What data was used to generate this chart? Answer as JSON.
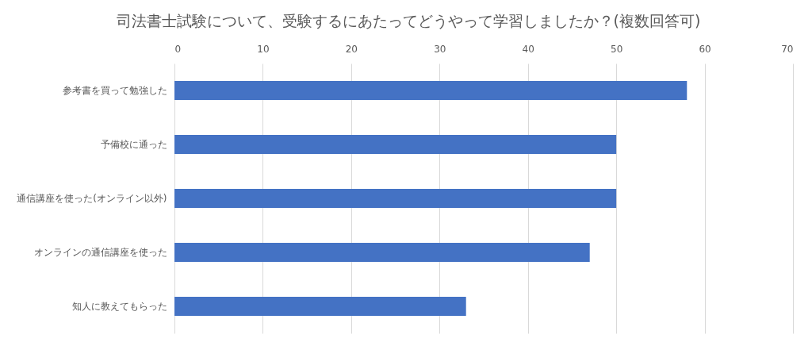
{
  "chart_data": {
    "type": "bar",
    "orientation": "horizontal",
    "title": "司法書士試験について、受験するにあたってどうやって学習しましたか？(複数回答可)",
    "categories": [
      "参考書を買って勉強した",
      "予備校に通った",
      "通信講座を使った(オンライン以外)",
      "オンラインの通信講座を使った",
      "知人に教えてもらった"
    ],
    "values": [
      58,
      50,
      50,
      47,
      33
    ],
    "color": "#4472c4",
    "xlim": [
      0,
      70
    ],
    "xticks": [
      0,
      10,
      20,
      30,
      40,
      50,
      60,
      70
    ],
    "grid": "x"
  }
}
